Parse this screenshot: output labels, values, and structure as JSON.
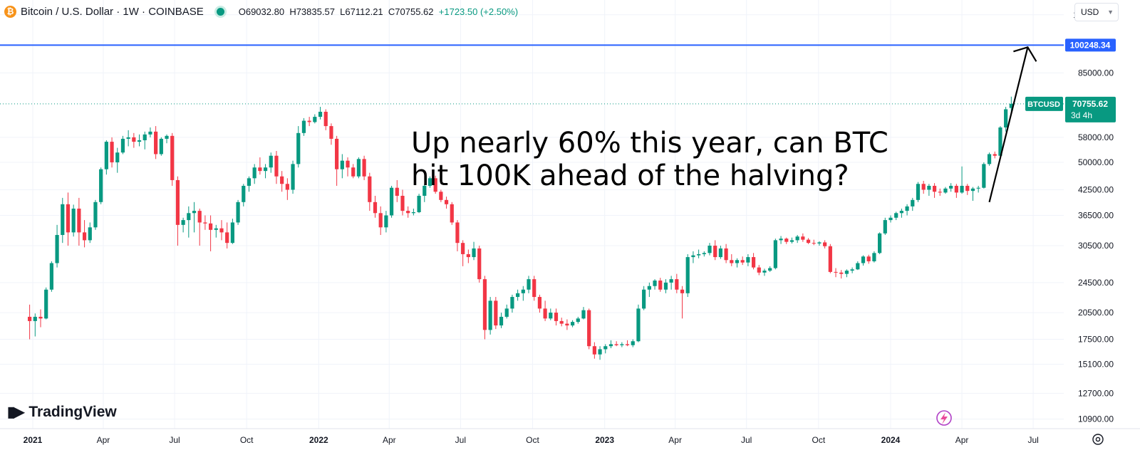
{
  "header": {
    "symbol_title": "Bitcoin / U.S. Dollar · 1W · COINBASE",
    "open": "O69032.80",
    "high": "H73835.57",
    "low": "L67112.21",
    "close": "C70755.62",
    "change": "+1723.50 (+2.50%)",
    "coin_icon": "bitcoin-icon",
    "status_icon": "market-open-dot-icon",
    "currency": "USD"
  },
  "annotation": {
    "line1": "Up nearly 60% this year, can BTC",
    "line2": "hit 100K ahead of the halving?"
  },
  "branding": {
    "logo_text": "TradingView"
  },
  "colors": {
    "up": "#089981",
    "down": "#f23645",
    "hline": "#2962ff",
    "arrow": "#000000"
  },
  "chart_data": {
    "type": "candlestick",
    "symbol": "BTCUSD",
    "interval": "1W",
    "y_scale": "log",
    "ylim": [
      10300,
      131000
    ],
    "price_ticks": [
      120000,
      85000,
      58000,
      50000,
      42500,
      36500,
      30500,
      24500,
      20500,
      17500,
      15100,
      12700,
      10900
    ],
    "horizontal_line": {
      "value": 100248.34,
      "label": "100248.34"
    },
    "last_price": {
      "symbol_label": "BTCUSD",
      "value": "70755.62",
      "countdown": "3d 4h"
    },
    "x_ticks": [
      "2021",
      "Apr",
      "Jul",
      "Oct",
      "2022",
      "Apr",
      "Jul",
      "Oct",
      "2023",
      "Apr",
      "Jul",
      "Oct",
      "2024",
      "Apr",
      "Jul"
    ],
    "x_ticks_bold": [
      "2021",
      "2022",
      "2023",
      "2024"
    ],
    "candles": [
      [
        "2020-12-28",
        20000,
        21500,
        17500,
        19500
      ],
      [
        "2021-01-04",
        19500,
        20400,
        17800,
        20000
      ],
      [
        "2021-01-11",
        20000,
        20900,
        18800,
        19800
      ],
      [
        "2021-01-18",
        19800,
        23800,
        19700,
        23500
      ],
      [
        "2021-01-25",
        23500,
        27800,
        23200,
        27500
      ],
      [
        "2021-02-01",
        27500,
        34500,
        26800,
        32500
      ],
      [
        "2021-02-08",
        32500,
        40500,
        31000,
        39000
      ],
      [
        "2021-02-15",
        39000,
        41800,
        30500,
        33000
      ],
      [
        "2021-02-22",
        33000,
        38900,
        32200,
        38000
      ],
      [
        "2021-03-01",
        38000,
        40500,
        30500,
        33000
      ],
      [
        "2021-03-08",
        33000,
        35500,
        30200,
        31500
      ],
      [
        "2021-03-15",
        31500,
        35000,
        31000,
        34000
      ],
      [
        "2021-03-22",
        34000,
        40000,
        33500,
        39500
      ],
      [
        "2021-03-29",
        39500,
        48500,
        39000,
        48000
      ],
      [
        "2021-04-05",
        48000,
        57000,
        46500,
        56500
      ],
      [
        "2021-04-12",
        56500,
        58000,
        48500,
        50000
      ],
      [
        "2021-04-19",
        50000,
        54500,
        47000,
        53000
      ],
      [
        "2021-04-26",
        53000,
        58500,
        52500,
        57500
      ],
      [
        "2021-05-03",
        57500,
        60500,
        55000,
        58000
      ],
      [
        "2021-05-10",
        58000,
        59500,
        54500,
        56500
      ],
      [
        "2021-05-17",
        56500,
        59000,
        55000,
        57000
      ],
      [
        "2021-05-24",
        57000,
        60000,
        54000,
        59000
      ],
      [
        "2021-05-31",
        59000,
        61500,
        58000,
        60000
      ],
      [
        "2021-06-07",
        60000,
        62000,
        51000,
        52500
      ],
      [
        "2021-06-14",
        52500,
        58000,
        52000,
        57500
      ],
      [
        "2021-06-21",
        57500,
        59000,
        56000,
        58500
      ],
      [
        "2021-06-28",
        58500,
        59500,
        43500,
        45000
      ],
      [
        "2021-07-05",
        45000,
        46000,
        30500,
        34500
      ],
      [
        "2021-07-12",
        34500,
        36000,
        33000,
        35500
      ],
      [
        "2021-07-19",
        35500,
        38500,
        32000,
        37000
      ],
      [
        "2021-07-26",
        37000,
        39500,
        33000,
        37500
      ],
      [
        "2021-08-02",
        37500,
        38000,
        30500,
        35000
      ],
      [
        "2021-08-09",
        35000,
        36500,
        33500,
        34800
      ],
      [
        "2021-08-16",
        34800,
        36500,
        29500,
        33500
      ],
      [
        "2021-08-23",
        33500,
        34500,
        32000,
        33800
      ],
      [
        "2021-08-30",
        33800,
        35500,
        31500,
        33000
      ],
      [
        "2021-09-06",
        33000,
        35000,
        30000,
        31000
      ],
      [
        "2021-09-13",
        31000,
        35800,
        30800,
        35000
      ],
      [
        "2021-09-20",
        35000,
        40000,
        34500,
        39500
      ],
      [
        "2021-09-27",
        39500,
        44000,
        38500,
        43500
      ],
      [
        "2021-10-04",
        43500,
        46000,
        42000,
        45500
      ],
      [
        "2021-10-11",
        45500,
        49500,
        44000,
        48500
      ],
      [
        "2021-10-18",
        48500,
        51500,
        46500,
        47500
      ],
      [
        "2021-10-25",
        47500,
        49500,
        45500,
        48500
      ],
      [
        "2021-11-01",
        48500,
        53000,
        47000,
        52000
      ],
      [
        "2021-11-08",
        52000,
        53500,
        44000,
        46000
      ],
      [
        "2021-11-15",
        46000,
        47500,
        42000,
        44000
      ],
      [
        "2021-11-22",
        44000,
        45500,
        40000,
        42500
      ],
      [
        "2021-11-29",
        42500,
        50500,
        41500,
        49500
      ],
      [
        "2021-12-06",
        49500,
        62000,
        48500,
        59500
      ],
      [
        "2021-12-13",
        59500,
        65000,
        58500,
        64000
      ],
      [
        "2021-12-20",
        64000,
        65500,
        62000,
        63500
      ],
      [
        "2021-12-27",
        63500,
        66500,
        63000,
        65500
      ],
      [
        "2022-01-03",
        65500,
        69500,
        64500,
        67500
      ],
      [
        "2022-01-10",
        67500,
        68500,
        60500,
        62000
      ],
      [
        "2022-01-17",
        62000,
        63000,
        55500,
        57500
      ],
      [
        "2022-01-24",
        57500,
        58500,
        43500,
        48000
      ],
      [
        "2022-01-31",
        48000,
        52500,
        45500,
        50500
      ],
      [
        "2022-02-07",
        50500,
        51500,
        46000,
        48500
      ],
      [
        "2022-02-14",
        48500,
        49500,
        45500,
        46000
      ],
      [
        "2022-02-21",
        46000,
        51500,
        45500,
        51000
      ],
      [
        "2022-02-28",
        51000,
        52000,
        45000,
        46000
      ],
      [
        "2022-03-07",
        46000,
        47000,
        37500,
        39500
      ],
      [
        "2022-03-14",
        39500,
        41000,
        36000,
        37000
      ],
      [
        "2022-03-21",
        37000,
        38500,
        32500,
        34000
      ],
      [
        "2022-03-28",
        34000,
        37500,
        33000,
        36500
      ],
      [
        "2022-04-04",
        36500,
        43500,
        36000,
        43000
      ],
      [
        "2022-04-11",
        43000,
        45000,
        39500,
        41000
      ],
      [
        "2022-04-18",
        41000,
        42500,
        36500,
        37500
      ],
      [
        "2022-04-25",
        37500,
        38500,
        36000,
        37000
      ],
      [
        "2022-05-02",
        37000,
        38000,
        36500,
        37200
      ],
      [
        "2022-05-09",
        37200,
        41500,
        37000,
        41000
      ],
      [
        "2022-05-16",
        41000,
        44000,
        39500,
        43500
      ],
      [
        "2022-05-23",
        43500,
        46000,
        43000,
        45500
      ],
      [
        "2022-05-30",
        45500,
        46200,
        41500,
        42000
      ],
      [
        "2022-06-06",
        42000,
        42500,
        39500,
        40000
      ],
      [
        "2022-06-13",
        40000,
        40800,
        38000,
        39000
      ],
      [
        "2022-06-20",
        39000,
        39500,
        34500,
        35000
      ],
      [
        "2022-06-27",
        35000,
        35500,
        29500,
        31000
      ],
      [
        "2022-07-04",
        31000,
        31500,
        27000,
        29000
      ],
      [
        "2022-07-11",
        29000,
        29800,
        27500,
        28500
      ],
      [
        "2022-07-18",
        28500,
        31200,
        28000,
        30000
      ],
      [
        "2022-07-25",
        30000,
        30500,
        24500,
        25000
      ],
      [
        "2022-08-01",
        25000,
        25500,
        17500,
        18500
      ],
      [
        "2022-08-08",
        18500,
        22500,
        18000,
        22000
      ],
      [
        "2022-08-15",
        22000,
        22500,
        18600,
        19000
      ],
      [
        "2022-08-22",
        19000,
        20500,
        18700,
        20000
      ],
      [
        "2022-08-29",
        20000,
        21500,
        19800,
        21000
      ],
      [
        "2022-09-05",
        21000,
        22800,
        20500,
        22500
      ],
      [
        "2022-09-12",
        22500,
        23500,
        22000,
        23000
      ],
      [
        "2022-09-19",
        23000,
        24000,
        22000,
        23500
      ],
      [
        "2022-09-26",
        23500,
        25500,
        23000,
        25000
      ],
      [
        "2022-10-03",
        25000,
        25500,
        22000,
        22500
      ],
      [
        "2022-10-10",
        22500,
        22800,
        20500,
        21000
      ],
      [
        "2022-10-17",
        21000,
        22000,
        19500,
        19800
      ],
      [
        "2022-10-24",
        19800,
        21000,
        19600,
        20500
      ],
      [
        "2022-10-31",
        20500,
        21000,
        19000,
        19500
      ],
      [
        "2022-11-07",
        19500,
        19900,
        18900,
        19200
      ],
      [
        "2022-11-14",
        19200,
        19700,
        18500,
        19000
      ],
      [
        "2022-11-21",
        19000,
        19600,
        18800,
        19400
      ],
      [
        "2022-11-28",
        19400,
        20000,
        19200,
        19800
      ],
      [
        "2022-12-05",
        19800,
        21200,
        19700,
        20800
      ],
      [
        "2022-12-12",
        20800,
        21000,
        16500,
        16800
      ],
      [
        "2022-12-19",
        16800,
        17200,
        15600,
        16000
      ],
      [
        "2022-12-26",
        16000,
        16800,
        15500,
        16500
      ],
      [
        "2023-01-02",
        16500,
        17000,
        16100,
        16800
      ],
      [
        "2023-01-09",
        16800,
        17400,
        16600,
        17000
      ],
      [
        "2023-01-16",
        17000,
        17300,
        16800,
        16900
      ],
      [
        "2023-01-23",
        16900,
        17200,
        16700,
        17000
      ],
      [
        "2023-01-30",
        17000,
        17400,
        16800,
        16900
      ],
      [
        "2023-02-06",
        16900,
        17500,
        16700,
        17300
      ],
      [
        "2023-02-13",
        17300,
        21500,
        17200,
        21000
      ],
      [
        "2023-02-20",
        21000,
        24000,
        20800,
        23500
      ],
      [
        "2023-02-27",
        23500,
        24500,
        22500,
        24000
      ],
      [
        "2023-03-06",
        24000,
        25000,
        23500,
        24800
      ],
      [
        "2023-03-13",
        24800,
        25200,
        23200,
        23500
      ],
      [
        "2023-03-20",
        23500,
        25000,
        23000,
        24500
      ],
      [
        "2023-03-27",
        24500,
        25500,
        23500,
        25000
      ],
      [
        "2023-04-03",
        25000,
        25800,
        23000,
        23500
      ],
      [
        "2023-04-10",
        23500,
        24000,
        19800,
        23000
      ],
      [
        "2023-04-17",
        23000,
        29000,
        22500,
        28500
      ],
      [
        "2023-04-24",
        28500,
        29500,
        27500,
        28800
      ],
      [
        "2023-05-01",
        28800,
        29800,
        28300,
        29000
      ],
      [
        "2023-05-08",
        29000,
        29500,
        28600,
        29200
      ],
      [
        "2023-05-15",
        29200,
        31000,
        28800,
        30500
      ],
      [
        "2023-05-22",
        30500,
        31500,
        28000,
        28500
      ],
      [
        "2023-05-29",
        28500,
        30500,
        28200,
        30000
      ],
      [
        "2023-06-05",
        30000,
        30800,
        27500,
        28000
      ],
      [
        "2023-06-12",
        28000,
        29000,
        27000,
        27500
      ],
      [
        "2023-06-19",
        27500,
        28300,
        26800,
        28000
      ],
      [
        "2023-06-26",
        28000,
        28600,
        27200,
        27600
      ],
      [
        "2023-07-03",
        27600,
        29000,
        27000,
        28500
      ],
      [
        "2023-07-10",
        28500,
        29200,
        26500,
        26800
      ],
      [
        "2023-07-17",
        26800,
        27200,
        25600,
        26000
      ],
      [
        "2023-07-24",
        26000,
        26600,
        25500,
        26300
      ],
      [
        "2023-07-31",
        26300,
        27000,
        26100,
        26700
      ],
      [
        "2023-08-07",
        26700,
        31800,
        26500,
        31500
      ],
      [
        "2023-08-14",
        31500,
        32300,
        30800,
        31800
      ],
      [
        "2023-08-21",
        31800,
        32000,
        30800,
        31200
      ],
      [
        "2023-08-28",
        31200,
        32000,
        30900,
        31500
      ],
      [
        "2023-09-04",
        31500,
        32500,
        31000,
        32200
      ],
      [
        "2023-09-11",
        32200,
        32800,
        31200,
        31600
      ],
      [
        "2023-09-18",
        31600,
        31900,
        30800,
        31000
      ],
      [
        "2023-09-25",
        31000,
        31600,
        30600,
        30900
      ],
      [
        "2023-10-02",
        30900,
        31300,
        30500,
        31100
      ],
      [
        "2023-10-09",
        31100,
        31500,
        30000,
        30400
      ],
      [
        "2023-10-16",
        30400,
        30800,
        25900,
        26100
      ],
      [
        "2023-10-23",
        26100,
        26700,
        25300,
        26000
      ],
      [
        "2023-10-30",
        26000,
        26400,
        25100,
        25800
      ],
      [
        "2023-11-06",
        25800,
        26500,
        25300,
        26300
      ],
      [
        "2023-11-13",
        26300,
        26800,
        25900,
        26500
      ],
      [
        "2023-11-20",
        26500,
        27800,
        26400,
        27500
      ],
      [
        "2023-11-27",
        27500,
        28800,
        27100,
        28600
      ],
      [
        "2023-12-04",
        28600,
        28900,
        27400,
        27800
      ],
      [
        "2023-12-11",
        27800,
        29500,
        27600,
        29200
      ],
      [
        "2023-12-18",
        29200,
        33000,
        29000,
        32800
      ],
      [
        "2023-12-25",
        32800,
        36000,
        32500,
        35500
      ],
      [
        "2024-01-01",
        35500,
        36500,
        35000,
        36000
      ],
      [
        "2024-01-08",
        36000,
        37300,
        35500,
        37000
      ],
      [
        "2024-01-15",
        37000,
        38000,
        36000,
        37500
      ],
      [
        "2024-01-22",
        37500,
        39000,
        36500,
        38500
      ],
      [
        "2024-01-29",
        38500,
        40500,
        37500,
        40000
      ],
      [
        "2024-02-05",
        40000,
        44500,
        39500,
        44000
      ],
      [
        "2024-02-12",
        44000,
        44800,
        41500,
        42500
      ],
      [
        "2024-02-19",
        42500,
        44000,
        41000,
        43500
      ],
      [
        "2024-02-26",
        43500,
        44200,
        40500,
        42000
      ],
      [
        "2024-03-04",
        42000,
        42800,
        41000,
        41800
      ],
      [
        "2024-03-11",
        41800,
        43200,
        41500,
        42800
      ],
      [
        "2024-03-18",
        42800,
        44200,
        42000,
        43500
      ],
      [
        "2024-03-25",
        43500,
        44000,
        40500,
        41800
      ],
      [
        "2024-04-01",
        41800,
        48800,
        41500,
        43500
      ],
      [
        "2024-04-08",
        43500,
        44000,
        41200,
        42200
      ],
      [
        "2024-04-15",
        42200,
        43200,
        39800,
        42800
      ],
      [
        "2024-04-22",
        42800,
        43500,
        41800,
        43000
      ],
      [
        "2024-04-29",
        43000,
        50000,
        42800,
        49500
      ],
      [
        "2024-05-06",
        49500,
        53000,
        49000,
        52500
      ],
      [
        "2024-05-13",
        52500,
        53300,
        51200,
        52000
      ],
      [
        "2024-05-20",
        52000,
        62000,
        51800,
        61500
      ],
      [
        "2024-05-27",
        61500,
        69500,
        60000,
        68500
      ],
      [
        "2024-06-03",
        69032.8,
        73835.57,
        67112.21,
        70755.62
      ]
    ]
  }
}
